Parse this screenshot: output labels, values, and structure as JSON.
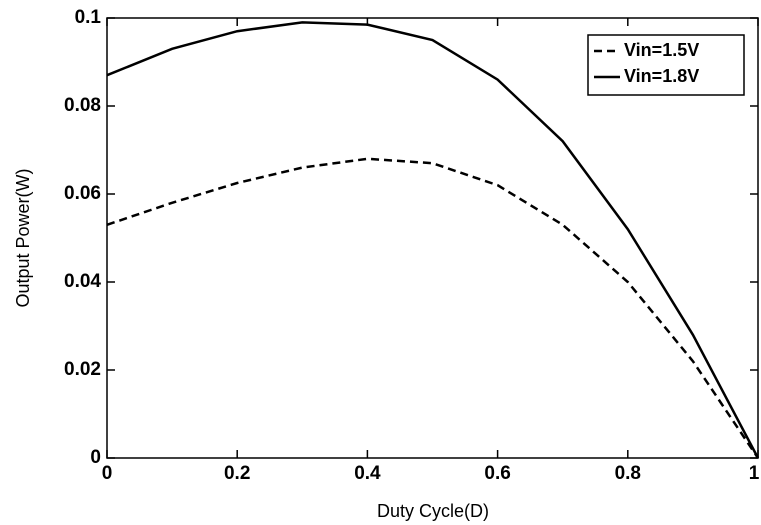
{
  "chart_data": {
    "type": "line",
    "x_label": "Duty Cycle(D)",
    "y_label": "Output Power(W)",
    "x": [
      0,
      0.1,
      0.2,
      0.3,
      0.4,
      0.5,
      0.6,
      0.7,
      0.8,
      0.9,
      1
    ],
    "series": [
      {
        "name": "Vin=1.5V",
        "color": "#000000",
        "dash": "dashed",
        "values": [
          0.053,
          0.058,
          0.0625,
          0.066,
          0.068,
          0.067,
          0.062,
          0.053,
          0.04,
          0.022,
          0
        ]
      },
      {
        "name": "Vin=1.8V",
        "color": "#000000",
        "dash": "solid",
        "values": [
          0.087,
          0.093,
          0.097,
          0.099,
          0.0985,
          0.095,
          0.086,
          0.072,
          0.052,
          0.028,
          0
        ]
      }
    ],
    "xlim": [
      0,
      1
    ],
    "ylim": [
      0,
      0.1
    ],
    "xticks": [
      0,
      0.2,
      0.4,
      0.6,
      0.8,
      1
    ],
    "yticks": [
      0,
      0.02,
      0.04,
      0.06,
      0.08,
      0.1
    ],
    "legend": "upper right"
  }
}
